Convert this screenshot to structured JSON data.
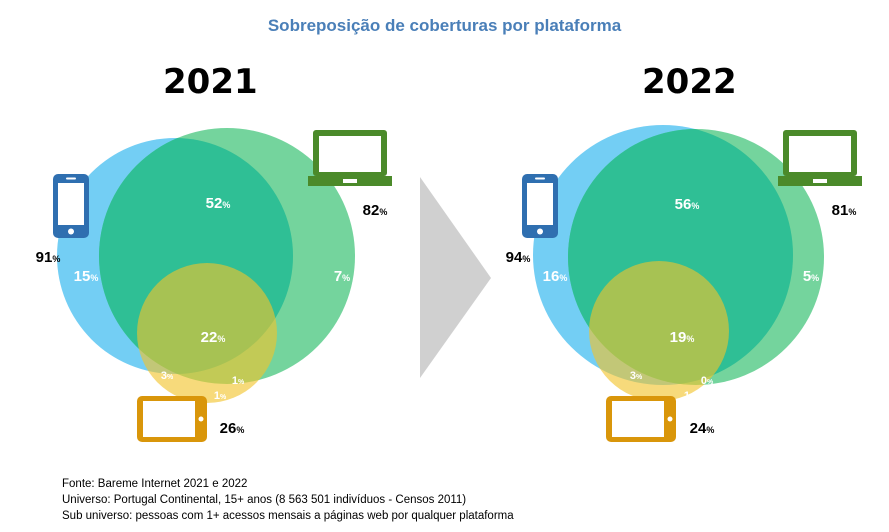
{
  "title": "Sobreposição de coberturas por plataforma",
  "chart_data": [
    {
      "type": "venn",
      "year": "2021",
      "totals": {
        "mobile": 91,
        "computer": 82,
        "tablet": 26
      },
      "regions": {
        "mobile_computer": 52,
        "mobile_only": 15,
        "computer_only": 7,
        "all_three": 22,
        "mobile_tablet": 3,
        "computer_tablet": 1,
        "tablet_only": 1
      }
    },
    {
      "type": "venn",
      "year": "2022",
      "totals": {
        "mobile": 94,
        "computer": 81,
        "tablet": 24
      },
      "regions": {
        "mobile_computer": 56,
        "mobile_only": 16,
        "computer_only": 5,
        "all_three": 19,
        "mobile_tablet": 3,
        "computer_tablet": 0,
        "tablet_only": 1
      }
    }
  ],
  "percent_sign": "%",
  "icons": {
    "mobile": "smartphone-icon",
    "computer": "laptop-icon",
    "tablet": "tablet-icon",
    "arrow": "arrow-right-icon"
  },
  "colors": {
    "title": "#4a7fb8",
    "mobile_circle": "#5bc6f2",
    "computer_circle": "#5ccd8c",
    "overlap": "#2fbf95",
    "tablet_circle": "#f2c42a",
    "mobile_icon": "#2f6fb0",
    "computer_icon": "#4b8a2a",
    "tablet_icon": "#d9960a",
    "arrow": "#d0d0d0"
  },
  "footer": {
    "source": "Fonte: Bareme Internet 2021 e 2022",
    "universe": "Universo: Portugal Continental, 15+ anos (8 563 501 indivíduos - Censos 2011)",
    "sub_universe": "Sub universo: pessoas com 1+ acessos mensais a páginas web por qualquer plataforma"
  }
}
